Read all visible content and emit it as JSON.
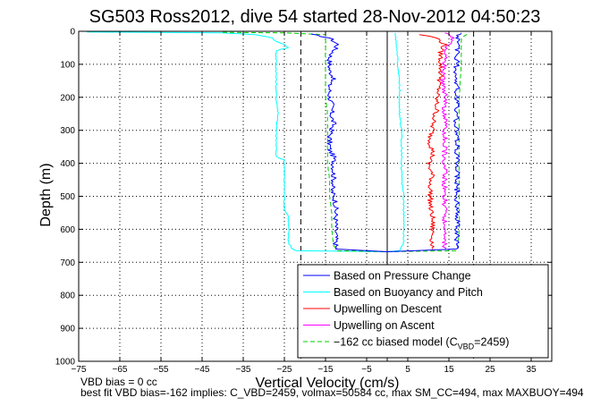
{
  "chart_data": {
    "type": "line",
    "title": "SG503 Ross2012, dive 54 started 28-Nov-2012 04:50:23",
    "xlabel": "Vertical Velocity (cm/s)",
    "ylabel": "Depth (m)",
    "xlim": [
      -75,
      40
    ],
    "ylim": [
      1000,
      0
    ],
    "xticks": [
      -75,
      -65,
      -55,
      -45,
      -35,
      -25,
      -15,
      -5,
      5,
      15,
      25,
      35
    ],
    "xtick_labels": [
      "−75",
      "−65",
      "−55",
      "−45",
      "−35",
      "−25",
      "−15",
      "−5",
      "5",
      "15",
      "25",
      "35"
    ],
    "yticks": [
      0,
      100,
      200,
      300,
      400,
      500,
      600,
      700,
      800,
      900,
      1000
    ],
    "ytick_labels": [
      "0",
      "100",
      "200",
      "300",
      "400",
      "500",
      "600",
      "700",
      "800",
      "900",
      "1000"
    ],
    "grid": true,
    "vlines_dashed": [
      -21,
      21
    ],
    "vline_solid": 0,
    "legend_position": "bottom-right",
    "series": [
      {
        "name": "Based on Pressure Change",
        "color": "#0000ff",
        "style": "solid",
        "points": [
          [
            -19,
            8
          ],
          [
            -14,
            20
          ],
          [
            -12,
            40
          ],
          [
            -13,
            60
          ],
          [
            -14,
            80
          ],
          [
            -14,
            100
          ],
          [
            -14,
            120
          ],
          [
            -13,
            140
          ],
          [
            -14,
            160
          ],
          [
            -14,
            180
          ],
          [
            -14,
            200
          ],
          [
            -13.5,
            220
          ],
          [
            -13.5,
            240
          ],
          [
            -13.5,
            260
          ],
          [
            -13,
            280
          ],
          [
            -13.5,
            300
          ],
          [
            -14,
            320
          ],
          [
            -14,
            340
          ],
          [
            -14,
            360
          ],
          [
            -13,
            380
          ],
          [
            -13,
            400
          ],
          [
            -13,
            420
          ],
          [
            -13,
            440
          ],
          [
            -13,
            460
          ],
          [
            -13.5,
            480
          ],
          [
            -13,
            500
          ],
          [
            -12.5,
            520
          ],
          [
            -12.5,
            540
          ],
          [
            -12.5,
            560
          ],
          [
            -12.5,
            580
          ],
          [
            -12.5,
            600
          ],
          [
            -12.5,
            620
          ],
          [
            -12.5,
            640
          ],
          [
            -12.5,
            660
          ],
          [
            0,
            668
          ],
          [
            17,
            660
          ],
          [
            17,
            640
          ],
          [
            17,
            620
          ],
          [
            17,
            600
          ],
          [
            17,
            580
          ],
          [
            17,
            560
          ],
          [
            17,
            540
          ],
          [
            17,
            520
          ],
          [
            17,
            500
          ],
          [
            17,
            480
          ],
          [
            17,
            460
          ],
          [
            17,
            440
          ],
          [
            17,
            420
          ],
          [
            17,
            400
          ],
          [
            17,
            380
          ],
          [
            17,
            360
          ],
          [
            17,
            340
          ],
          [
            17,
            320
          ],
          [
            17,
            300
          ],
          [
            16.5,
            280
          ],
          [
            17,
            260
          ],
          [
            17,
            240
          ],
          [
            17,
            220
          ],
          [
            17,
            200
          ],
          [
            17,
            180
          ],
          [
            17,
            160
          ],
          [
            17,
            140
          ],
          [
            16.5,
            120
          ],
          [
            17,
            100
          ],
          [
            17,
            80
          ],
          [
            17,
            60
          ],
          [
            17,
            40
          ],
          [
            17,
            20
          ],
          [
            18,
            5
          ]
        ]
      },
      {
        "name": "Based on Buoyancy and Pitch",
        "color": "#00ffff",
        "style": "solid",
        "points": [
          [
            -73,
            2
          ],
          [
            -40,
            5
          ],
          [
            -32,
            10
          ],
          [
            -28,
            20
          ],
          [
            -27,
            30
          ],
          [
            -25,
            40
          ],
          [
            -24,
            50
          ],
          [
            -26,
            55
          ],
          [
            -27,
            60
          ],
          [
            -27,
            100
          ],
          [
            -27,
            150
          ],
          [
            -27,
            200
          ],
          [
            -26.5,
            250
          ],
          [
            -27,
            300
          ],
          [
            -27,
            350
          ],
          [
            -27,
            380
          ],
          [
            -25,
            390
          ],
          [
            -25,
            400
          ],
          [
            -25,
            450
          ],
          [
            -25,
            500
          ],
          [
            -25,
            540
          ],
          [
            -24,
            560
          ],
          [
            -24,
            600
          ],
          [
            -24,
            640
          ],
          [
            -23,
            660
          ],
          [
            -22,
            665
          ],
          [
            0,
            668
          ],
          [
            3,
            665
          ],
          [
            4,
            640
          ],
          [
            4,
            600
          ],
          [
            4,
            550
          ],
          [
            4,
            500
          ],
          [
            3.5,
            450
          ],
          [
            3.5,
            400
          ],
          [
            3.5,
            350
          ],
          [
            3.5,
            300
          ],
          [
            3,
            250
          ],
          [
            3,
            200
          ],
          [
            3,
            150
          ],
          [
            2.5,
            100
          ],
          [
            2.5,
            60
          ],
          [
            2,
            20
          ],
          [
            2,
            5
          ]
        ]
      },
      {
        "name": "Upwelling on Descent",
        "color": "#ff0000",
        "style": "solid",
        "points": [
          [
            8,
            10
          ],
          [
            12,
            20
          ],
          [
            14,
            40
          ],
          [
            13,
            60
          ],
          [
            13,
            80
          ],
          [
            13,
            100
          ],
          [
            13,
            120
          ],
          [
            13,
            140
          ],
          [
            12.5,
            160
          ],
          [
            12.5,
            180
          ],
          [
            12,
            200
          ],
          [
            12,
            220
          ],
          [
            12,
            240
          ],
          [
            11.5,
            260
          ],
          [
            11,
            280
          ],
          [
            11,
            300
          ],
          [
            10.5,
            320
          ],
          [
            10.5,
            340
          ],
          [
            11,
            360
          ],
          [
            11,
            380
          ],
          [
            10,
            400
          ],
          [
            10.5,
            420
          ],
          [
            11,
            440
          ],
          [
            10.5,
            460
          ],
          [
            10.5,
            480
          ],
          [
            10.5,
            500
          ],
          [
            10.5,
            520
          ],
          [
            10.5,
            540
          ],
          [
            11,
            560
          ],
          [
            11,
            580
          ],
          [
            11,
            600
          ],
          [
            11,
            620
          ],
          [
            11,
            640
          ],
          [
            11,
            660
          ]
        ]
      },
      {
        "name": "Upwelling on Ascent",
        "color": "#ff00ff",
        "style": "solid",
        "points": [
          [
            14,
            660
          ],
          [
            14,
            640
          ],
          [
            14,
            620
          ],
          [
            14,
            600
          ],
          [
            14,
            580
          ],
          [
            14,
            560
          ],
          [
            14,
            540
          ],
          [
            14,
            520
          ],
          [
            14,
            500
          ],
          [
            14,
            480
          ],
          [
            14,
            460
          ],
          [
            14,
            440
          ],
          [
            14,
            420
          ],
          [
            14,
            400
          ],
          [
            14,
            380
          ],
          [
            14,
            360
          ],
          [
            14,
            340
          ],
          [
            14,
            320
          ],
          [
            14,
            300
          ],
          [
            14,
            280
          ],
          [
            14,
            260
          ],
          [
            14,
            240
          ],
          [
            14,
            220
          ],
          [
            14,
            200
          ],
          [
            14,
            180
          ],
          [
            13.5,
            160
          ],
          [
            13.5,
            140
          ],
          [
            13.5,
            120
          ],
          [
            14,
            100
          ],
          [
            14,
            80
          ],
          [
            14,
            60
          ],
          [
            15,
            40
          ],
          [
            16,
            20
          ],
          [
            14,
            5
          ]
        ]
      },
      {
        "name": "−162 cc biased model (C",
        "name_subscript": "VBD",
        "name_suffix": "=2459)",
        "color": "#00cc00",
        "style": "dashed",
        "points": [
          [
            -40,
            3
          ],
          [
            -25,
            5
          ],
          [
            -15,
            10
          ],
          [
            -15,
            50
          ],
          [
            -15,
            100
          ],
          [
            -15,
            150
          ],
          [
            -15,
            200
          ],
          [
            -14.5,
            250
          ],
          [
            -14.5,
            300
          ],
          [
            -14.5,
            350
          ],
          [
            -14.5,
            400
          ],
          [
            -14,
            450
          ],
          [
            -14,
            500
          ],
          [
            -13.5,
            550
          ],
          [
            -13.5,
            600
          ],
          [
            -13,
            650
          ],
          [
            -12,
            665
          ],
          [
            0,
            668
          ],
          [
            17,
            665
          ],
          [
            17.5,
            600
          ],
          [
            17.5,
            500
          ],
          [
            17.5,
            400
          ],
          [
            17.5,
            300
          ],
          [
            17.5,
            200
          ],
          [
            18,
            100
          ],
          [
            18,
            50
          ],
          [
            18,
            20
          ],
          [
            20,
            5
          ]
        ]
      }
    ]
  },
  "notes": {
    "vbd_bias": "VBD bias = 0 cc",
    "best_fit": "best fit VBD bias=-162 implies: C_VBD=2459, volmax=50584 cc, max SM_CC=494, max MAXBUOY=494"
  }
}
